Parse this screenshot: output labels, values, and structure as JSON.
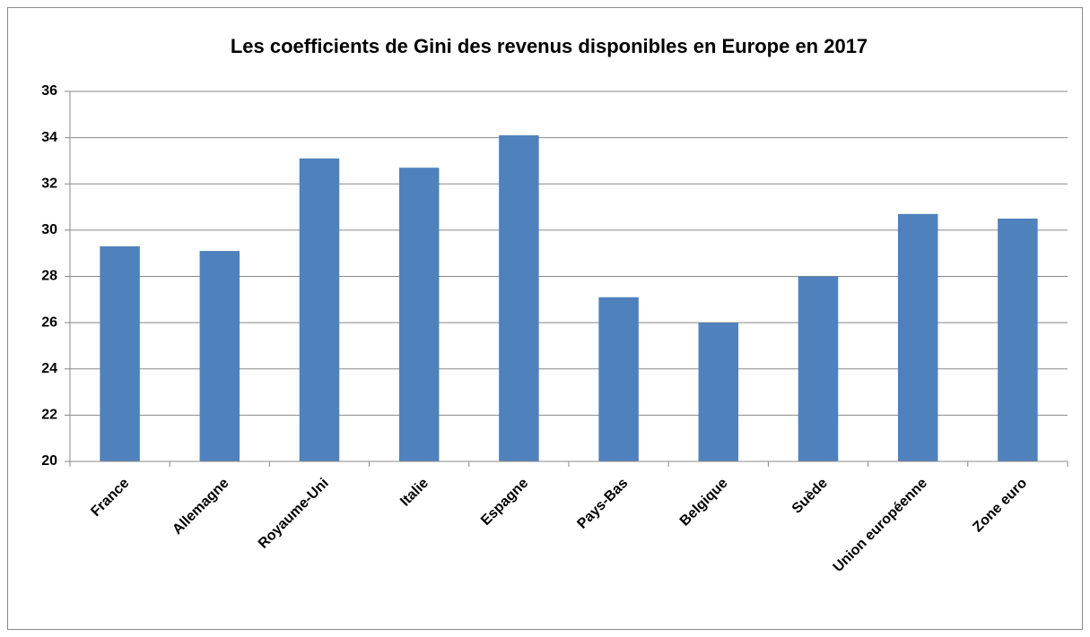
{
  "chart_data": {
    "type": "bar",
    "title": "Les coefficients de Gini des revenus disponibles en Europe en 2017",
    "categories": [
      "France",
      "Allemagne",
      "Royaume-Uni",
      "Italie",
      "Espagne",
      "Pays-Bas",
      "Belgique",
      "Suède",
      "Union européenne",
      "Zone euro"
    ],
    "values": [
      29.3,
      29.1,
      33.1,
      32.7,
      34.1,
      27.1,
      26.0,
      28.0,
      30.7,
      30.5
    ],
    "color": "#4f81bd",
    "ylim": [
      20,
      36
    ],
    "yticks": [
      20,
      22,
      24,
      26,
      28,
      30,
      32,
      34,
      36
    ],
    "grid": true
  }
}
